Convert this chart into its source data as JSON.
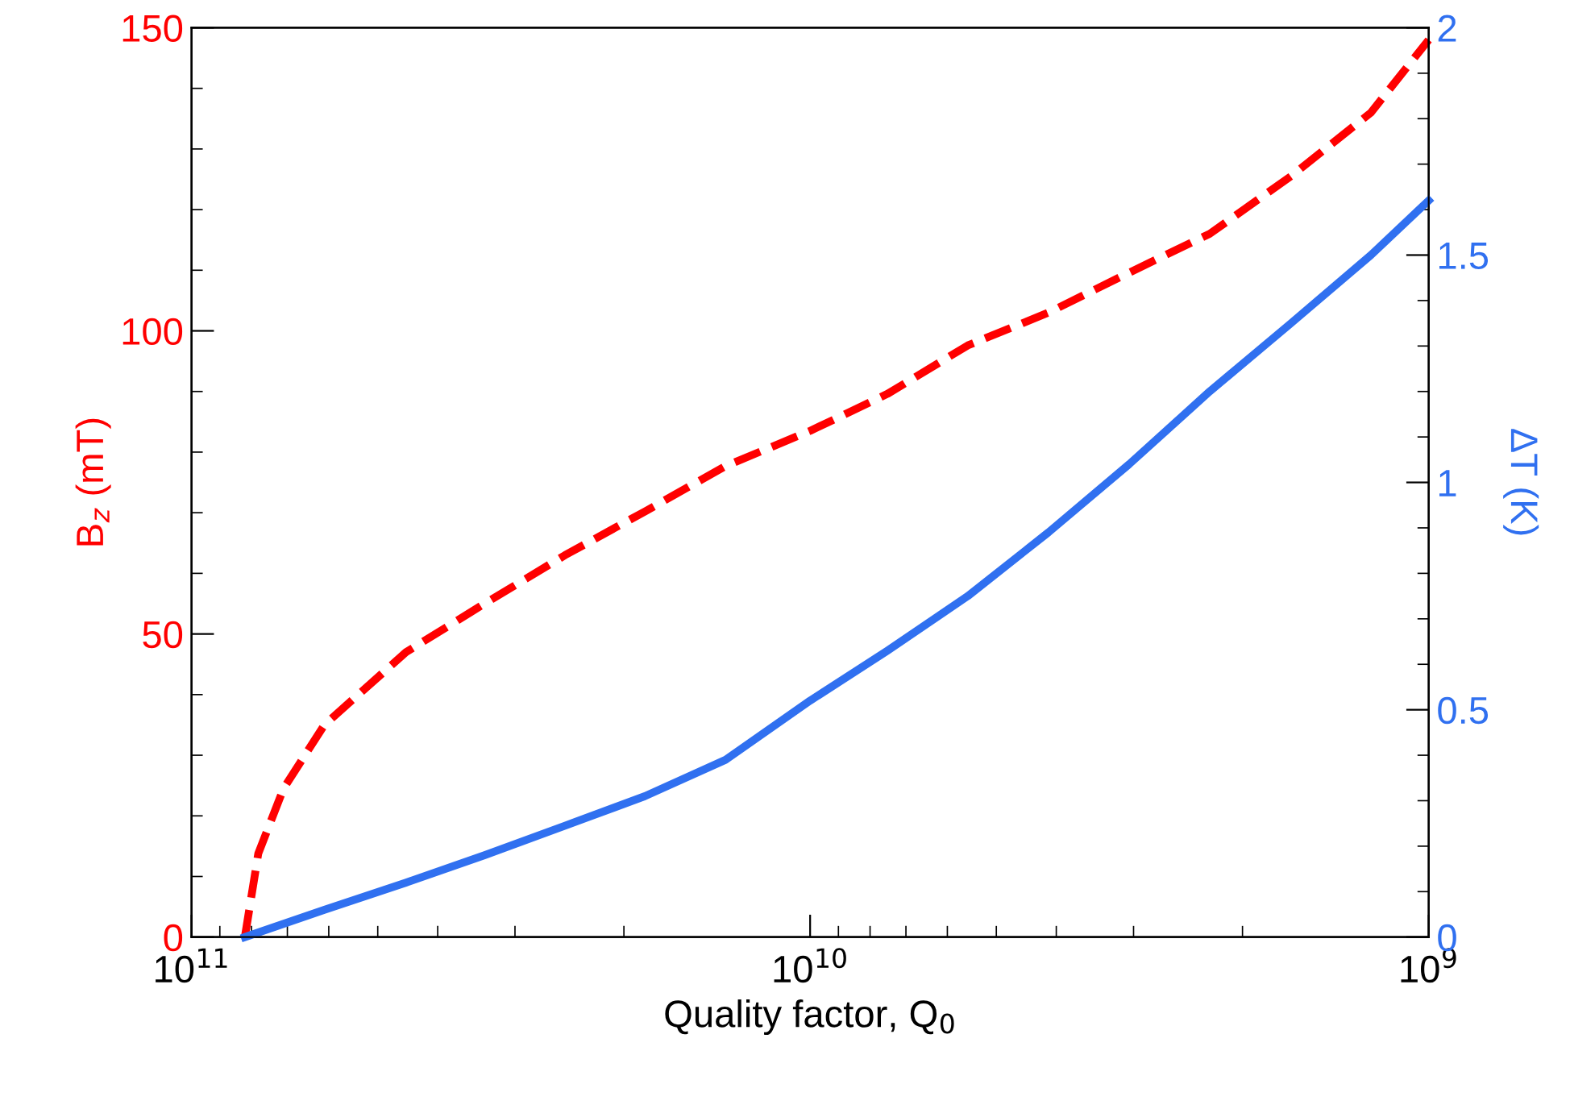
{
  "chart_data": {
    "type": "line",
    "xlabel": "Quality factor, Q$_{0}$",
    "ylabel": "B$_{z}$ (mT)",
    "y2label": "ΔT (K)",
    "log": "x",
    "xlim": [
      100000000000.0,
      1000000000.0
    ],
    "xticks": [
      {
        "value": 100000000000.0,
        "label": "10$^{11}$"
      },
      {
        "value": 10000000000.0,
        "label": "10$^{10}$"
      },
      {
        "value": 1000000000.0,
        "label": "10$^{9}$"
      }
    ],
    "ylim": [
      0,
      150
    ],
    "yticks": [
      0,
      50,
      100,
      150
    ],
    "y2lim": [
      0,
      2
    ],
    "y2ticks": [
      0,
      0.5,
      1,
      1.5,
      2
    ],
    "grid": false,
    "series": [
      {
        "color": "#ff0000",
        "line_style": "dashed",
        "x": [
          82000000000.0,
          78000000000.0,
          71000000000.0,
          61000000000.0,
          45000000000.0,
          33600000000.0,
          24900000000.0,
          18500000000.0,
          13700000000.0,
          10000000000.0,
          7500000000.0,
          5560000000.0,
          4120000000.0,
          3050000000.0,
          2260000000.0,
          1670000000.0,
          1240000000.0,
          1000000000.0
        ],
        "values": [
          0,
          13.8,
          24.5,
          35,
          47,
          55,
          63,
          70.2,
          77.7,
          83.5,
          89.6,
          97.6,
          103,
          109.6,
          116,
          125.5,
          136,
          148
        ]
      },
      {
        "color": "#3070f0",
        "line_style": "solid",
        "axis": "y2",
        "x": [
          82000000000.0,
          61000000000.0,
          45000000000.0,
          33600000000.0,
          24900000000.0,
          18500000000.0,
          13700000000.0,
          10000000000.0,
          7500000000.0,
          5560000000.0,
          4120000000.0,
          3050000000.0,
          2260000000.0,
          1670000000.0,
          1240000000.0,
          1000000000.0
        ],
        "values": [
          0,
          0.06,
          0.12,
          0.18,
          0.245,
          0.31,
          0.39,
          0.52,
          0.63,
          0.75,
          0.89,
          1.04,
          1.2,
          1.35,
          1.5,
          1.62
        ]
      }
    ]
  }
}
